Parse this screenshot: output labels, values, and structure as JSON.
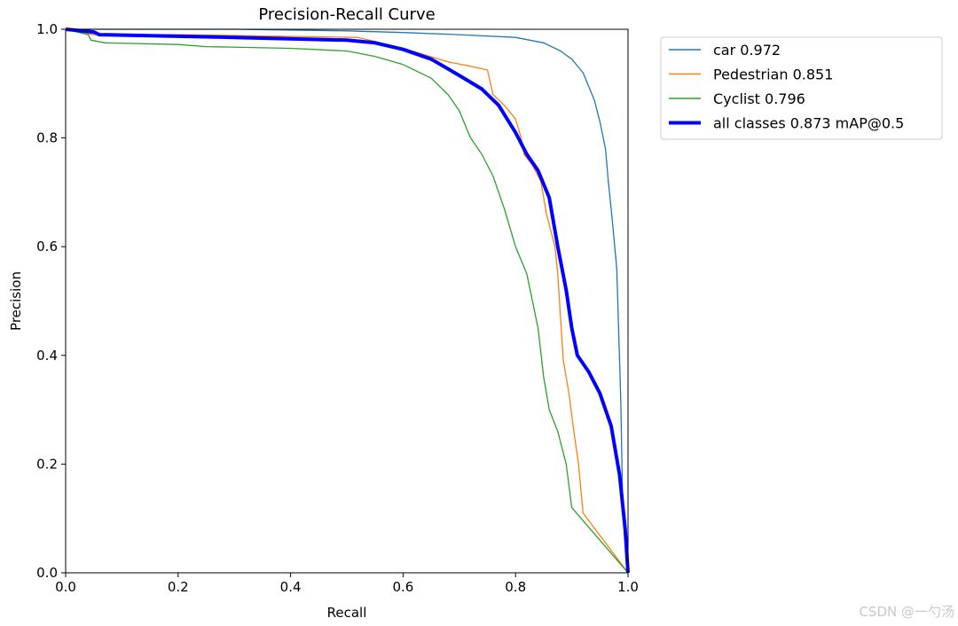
{
  "chart_data": {
    "type": "line",
    "title": "Precision-Recall Curve",
    "xlabel": "Recall",
    "ylabel": "Precision",
    "xlim": [
      0,
      1
    ],
    "ylim": [
      0,
      1
    ],
    "xticks": [
      "0.0",
      "0.2",
      "0.4",
      "0.6",
      "0.8",
      "1.0"
    ],
    "yticks": [
      "0.0",
      "0.2",
      "0.4",
      "0.6",
      "0.8",
      "1.0"
    ],
    "grid": false,
    "legend_placement": "outside-top-right",
    "series": [
      {
        "name": "car 0.972",
        "color": "#1f77b4",
        "width": "thin",
        "points": [
          [
            0,
            1
          ],
          [
            0.3,
            1.0
          ],
          [
            0.5,
            0.997
          ],
          [
            0.6,
            0.994
          ],
          [
            0.7,
            0.99
          ],
          [
            0.8,
            0.985
          ],
          [
            0.85,
            0.975
          ],
          [
            0.88,
            0.96
          ],
          [
            0.9,
            0.945
          ],
          [
            0.92,
            0.92
          ],
          [
            0.94,
            0.87
          ],
          [
            0.95,
            0.83
          ],
          [
            0.96,
            0.78
          ],
          [
            0.965,
            0.72
          ],
          [
            0.972,
            0.65
          ],
          [
            0.98,
            0.56
          ],
          [
            0.987,
            0.32
          ],
          [
            0.99,
            0.15
          ],
          [
            1.0,
            0.0
          ]
        ]
      },
      {
        "name": "Pedestrian 0.851",
        "color": "#ff7f0e",
        "width": "thin",
        "points": [
          [
            0,
            1
          ],
          [
            0.05,
            0.99
          ],
          [
            0.2,
            0.99
          ],
          [
            0.52,
            0.985
          ],
          [
            0.6,
            0.965
          ],
          [
            0.68,
            0.94
          ],
          [
            0.72,
            0.932
          ],
          [
            0.75,
            0.925
          ],
          [
            0.76,
            0.88
          ],
          [
            0.78,
            0.86
          ],
          [
            0.8,
            0.835
          ],
          [
            0.81,
            0.8
          ],
          [
            0.815,
            0.77
          ],
          [
            0.83,
            0.75
          ],
          [
            0.845,
            0.72
          ],
          [
            0.855,
            0.66
          ],
          [
            0.87,
            0.6
          ],
          [
            0.875,
            0.55
          ],
          [
            0.88,
            0.47
          ],
          [
            0.885,
            0.39
          ],
          [
            0.895,
            0.33
          ],
          [
            0.905,
            0.25
          ],
          [
            0.912,
            0.2
          ],
          [
            0.92,
            0.11
          ],
          [
            1.0,
            0.0
          ]
        ]
      },
      {
        "name": "Cyclist 0.796",
        "color": "#2ca02c",
        "width": "thin",
        "points": [
          [
            0,
            1
          ],
          [
            0.04,
            0.99
          ],
          [
            0.045,
            0.98
          ],
          [
            0.07,
            0.975
          ],
          [
            0.2,
            0.972
          ],
          [
            0.25,
            0.968
          ],
          [
            0.4,
            0.965
          ],
          [
            0.5,
            0.96
          ],
          [
            0.55,
            0.95
          ],
          [
            0.6,
            0.935
          ],
          [
            0.65,
            0.91
          ],
          [
            0.68,
            0.88
          ],
          [
            0.7,
            0.85
          ],
          [
            0.72,
            0.8
          ],
          [
            0.74,
            0.77
          ],
          [
            0.76,
            0.73
          ],
          [
            0.78,
            0.67
          ],
          [
            0.8,
            0.6
          ],
          [
            0.82,
            0.55
          ],
          [
            0.84,
            0.45
          ],
          [
            0.85,
            0.36
          ],
          [
            0.86,
            0.3
          ],
          [
            0.875,
            0.26
          ],
          [
            0.89,
            0.2
          ],
          [
            0.9,
            0.12
          ],
          [
            1.0,
            0.0
          ]
        ]
      },
      {
        "name": "all classes 0.873 mAP@0.5",
        "color": "#0000ff",
        "width": "thick",
        "points": [
          [
            0,
            1
          ],
          [
            0.05,
            0.995
          ],
          [
            0.06,
            0.99
          ],
          [
            0.3,
            0.985
          ],
          [
            0.5,
            0.98
          ],
          [
            0.55,
            0.975
          ],
          [
            0.6,
            0.963
          ],
          [
            0.65,
            0.945
          ],
          [
            0.7,
            0.915
          ],
          [
            0.74,
            0.89
          ],
          [
            0.77,
            0.86
          ],
          [
            0.8,
            0.81
          ],
          [
            0.82,
            0.77
          ],
          [
            0.84,
            0.74
          ],
          [
            0.86,
            0.69
          ],
          [
            0.875,
            0.6
          ],
          [
            0.89,
            0.52
          ],
          [
            0.9,
            0.45
          ],
          [
            0.91,
            0.4
          ],
          [
            0.93,
            0.37
          ],
          [
            0.95,
            0.33
          ],
          [
            0.97,
            0.27
          ],
          [
            0.985,
            0.18
          ],
          [
            0.995,
            0.08
          ],
          [
            1.0,
            0.0
          ]
        ]
      }
    ]
  },
  "watermark": "CSDN @一勺汤"
}
